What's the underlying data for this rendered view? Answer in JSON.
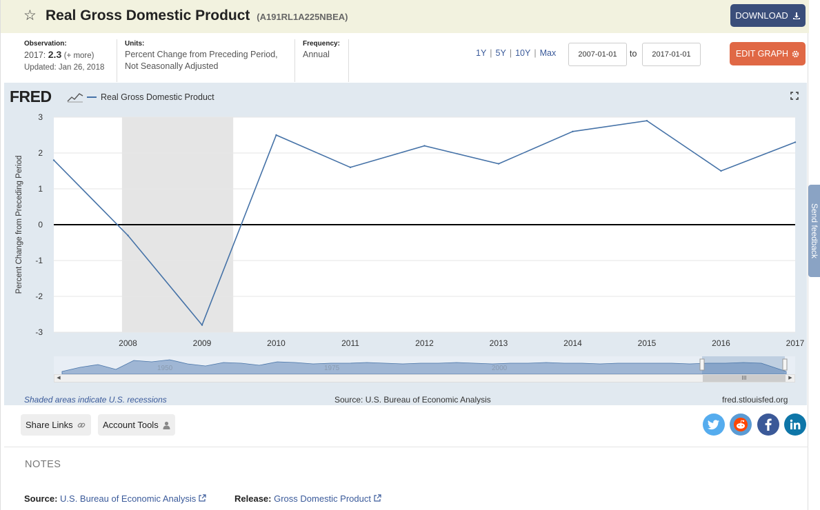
{
  "header": {
    "title": "Real Gross Domestic Product",
    "series_id": "(A191RL1A225NBEA)",
    "download_label": "DOWNLOAD"
  },
  "meta": {
    "observation_label": "Observation:",
    "observation_date": "2017:",
    "observation_value": "2.3",
    "observation_more": "(+ more)",
    "updated": "Updated: Jan 26, 2018",
    "units_label": "Units:",
    "units_line1": "Percent Change from Preceding Period,",
    "units_line2": "Not Seasonally Adjusted",
    "frequency_label": "Frequency:",
    "frequency_value": "Annual"
  },
  "range": {
    "options": [
      "1Y",
      "5Y",
      "10Y",
      "Max"
    ],
    "start_date": "2007-01-01",
    "to_label": "to",
    "end_date": "2017-01-01",
    "edit_label": "EDIT GRAPH"
  },
  "graph": {
    "logo": "FRED",
    "legend": "Real Gross Domestic Product",
    "recession_note": "Shaded areas indicate U.S. recessions",
    "source_note": "Source: U.S. Bureau of Economic Analysis",
    "url_note": "fred.stlouisfed.org",
    "navigator_labels": [
      "1950",
      "1975",
      "2000"
    ]
  },
  "chart_data": {
    "type": "line",
    "title": "",
    "xlabel": "",
    "ylabel": "Percent Change from Preceding Period",
    "ylim": [
      -3,
      3
    ],
    "yticks": [
      3,
      2,
      1,
      0,
      -1,
      -2,
      -3
    ],
    "xticks": [
      "2008",
      "2009",
      "2010",
      "2011",
      "2012",
      "2013",
      "2014",
      "2015",
      "2016",
      "2017"
    ],
    "series": [
      {
        "name": "Real Gross Domestic Product",
        "x": [
          2007,
          2008,
          2009,
          2010,
          2011,
          2012,
          2013,
          2014,
          2015,
          2016,
          2017
        ],
        "values": [
          1.8,
          -0.3,
          -2.8,
          2.5,
          1.6,
          2.2,
          1.7,
          2.6,
          2.9,
          1.5,
          2.3
        ],
        "color": "#4572a7"
      }
    ],
    "recessions": [
      [
        2007.92,
        2009.42
      ]
    ],
    "grid": true,
    "legend_position": "top-left"
  },
  "actions": {
    "share_label": "Share Links",
    "account_label": "Account Tools"
  },
  "notes": {
    "header": "NOTES",
    "source_label": "Source:",
    "source_value": "U.S. Bureau of Economic Analysis",
    "release_label": "Release:",
    "release_value": "Gross Domestic Product"
  },
  "feedback": {
    "label": "Send feedback"
  }
}
